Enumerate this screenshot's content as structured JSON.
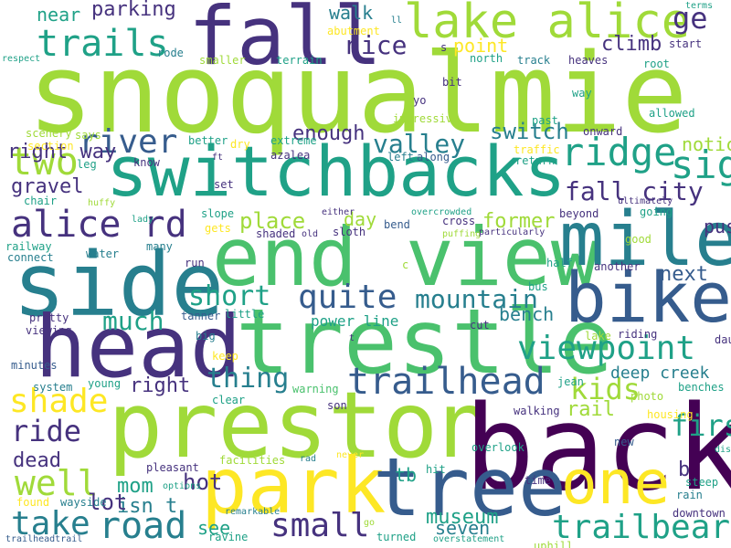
{
  "palette": {
    "purple": "#440154",
    "indigo": "#46327e",
    "blue": "#365c8d",
    "steel": "#277f8e",
    "teal": "#1fa187",
    "green": "#4ac16d",
    "lime": "#a0da39",
    "yellow": "#fde725"
  },
  "words": [
    {
      "text": "snoqualmie",
      "color": "lime"
    },
    {
      "text": "switchbacks",
      "color": "teal"
    },
    {
      "text": "preston",
      "color": "lime"
    },
    {
      "text": "back",
      "color": "purple"
    },
    {
      "text": "end view",
      "color": "green"
    },
    {
      "text": "trestle",
      "color": "green"
    },
    {
      "text": "park",
      "color": "yellow"
    },
    {
      "text": "tree",
      "color": "blue"
    },
    {
      "text": "fall",
      "color": "indigo"
    },
    {
      "text": "side",
      "color": "steel"
    },
    {
      "text": "head",
      "color": "indigo"
    },
    {
      "text": "mile",
      "color": "steel"
    },
    {
      "text": "bike",
      "color": "blue"
    },
    {
      "text": "one",
      "color": "yellow"
    },
    {
      "text": "lake alice",
      "color": "lime"
    },
    {
      "text": "trailhead",
      "color": "blue"
    },
    {
      "text": "ridge",
      "color": "teal"
    },
    {
      "text": "viewpoint",
      "color": "teal"
    },
    {
      "text": "alice rd",
      "color": "indigo"
    },
    {
      "text": "trails",
      "color": "teal"
    },
    {
      "text": "two",
      "color": "lime"
    },
    {
      "text": "river",
      "color": "blue"
    },
    {
      "text": "sign",
      "color": "teal"
    },
    {
      "text": "quite",
      "color": "blue"
    },
    {
      "text": "road",
      "color": "steel"
    },
    {
      "text": "small",
      "color": "indigo"
    },
    {
      "text": "trailbear",
      "color": "teal"
    },
    {
      "text": "take",
      "color": "steel"
    },
    {
      "text": "shade",
      "color": "yellow"
    },
    {
      "text": "well",
      "color": "lime"
    },
    {
      "text": "kids",
      "color": "lime"
    },
    {
      "text": "mountain",
      "color": "steel"
    },
    {
      "text": "fall city",
      "color": "indigo"
    },
    {
      "text": "valley",
      "color": "steel"
    },
    {
      "text": "much",
      "color": "teal"
    },
    {
      "text": "short",
      "color": "teal"
    },
    {
      "text": "thing",
      "color": "steel"
    },
    {
      "text": "ride",
      "color": "indigo"
    },
    {
      "text": "first",
      "color": "teal"
    },
    {
      "text": "nice",
      "color": "indigo"
    },
    {
      "text": "switch",
      "color": "steel"
    },
    {
      "text": "enough",
      "color": "indigo"
    },
    {
      "text": "place",
      "color": "lime"
    },
    {
      "text": "climb",
      "color": "indigo"
    },
    {
      "text": "parking",
      "color": "indigo"
    },
    {
      "text": "near",
      "color": "teal"
    },
    {
      "text": "walk",
      "color": "steel"
    },
    {
      "text": "point",
      "color": "yellow"
    },
    {
      "text": "ge",
      "color": "indigo"
    },
    {
      "text": "right way",
      "color": "indigo"
    },
    {
      "text": "gravel",
      "color": "indigo"
    },
    {
      "text": "day",
      "color": "lime"
    },
    {
      "text": "former",
      "color": "lime"
    },
    {
      "text": "next",
      "color": "blue"
    },
    {
      "text": "mom",
      "color": "teal"
    },
    {
      "text": "isn t",
      "color": "steel"
    },
    {
      "text": "see",
      "color": "teal"
    },
    {
      "text": "seven",
      "color": "steel"
    },
    {
      "text": "museum",
      "color": "teal"
    },
    {
      "text": "tb",
      "color": "teal"
    },
    {
      "text": "lot",
      "color": "indigo"
    },
    {
      "text": "hot",
      "color": "indigo"
    },
    {
      "text": "rail",
      "color": "lime"
    },
    {
      "text": "bench",
      "color": "steel"
    },
    {
      "text": "right",
      "color": "indigo"
    },
    {
      "text": "dead",
      "color": "indigo"
    },
    {
      "text": "b",
      "color": "indigo"
    },
    {
      "text": "notice",
      "color": "lime"
    },
    {
      "text": "pushing",
      "color": "indigo"
    },
    {
      "text": "deep creek",
      "color": "steel"
    },
    {
      "text": "power line",
      "color": "teal"
    },
    {
      "text": "terrain",
      "color": "teal"
    },
    {
      "text": "smaller",
      "color": "lime"
    },
    {
      "text": "abutment",
      "color": "yellow"
    },
    {
      "text": "north",
      "color": "teal"
    },
    {
      "text": "track",
      "color": "steel"
    },
    {
      "text": "heaves",
      "color": "indigo"
    },
    {
      "text": "root",
      "color": "teal"
    },
    {
      "text": "start",
      "color": "indigo"
    },
    {
      "text": "terms",
      "color": "teal"
    },
    {
      "text": "rode",
      "color": "steel"
    },
    {
      "text": "respect",
      "color": "teal"
    },
    {
      "text": "says",
      "color": "lime"
    },
    {
      "text": "scenery",
      "color": "lime"
    },
    {
      "text": "section",
      "color": "yellow"
    },
    {
      "text": "leg",
      "color": "teal"
    },
    {
      "text": "better",
      "color": "teal"
    },
    {
      "text": "dry",
      "color": "yellow"
    },
    {
      "text": "extreme",
      "color": "teal"
    },
    {
      "text": "impressive",
      "color": "lime"
    },
    {
      "text": "yo",
      "color": "indigo"
    },
    {
      "text": "bit",
      "color": "indigo"
    },
    {
      "text": "past",
      "color": "teal"
    },
    {
      "text": "way",
      "color": "teal"
    },
    {
      "text": "allowed",
      "color": "teal"
    },
    {
      "text": "onward",
      "color": "indigo"
    },
    {
      "text": "traffic",
      "color": "yellow"
    },
    {
      "text": "return",
      "color": "teal"
    },
    {
      "text": "left",
      "color": "steel"
    },
    {
      "text": "along",
      "color": "blue"
    },
    {
      "text": "azalea",
      "color": "indigo"
    },
    {
      "text": "know",
      "color": "indigo"
    },
    {
      "text": "ft",
      "color": "indigo"
    },
    {
      "text": "set",
      "color": "indigo"
    },
    {
      "text": "slope",
      "color": "teal"
    },
    {
      "text": "gets",
      "color": "yellow"
    },
    {
      "text": "shaded",
      "color": "indigo"
    },
    {
      "text": "old",
      "color": "indigo"
    },
    {
      "text": "sloth",
      "color": "indigo"
    },
    {
      "text": "either",
      "color": "indigo"
    },
    {
      "text": "overcrowded",
      "color": "teal"
    },
    {
      "text": "cross",
      "color": "indigo"
    },
    {
      "text": "bend",
      "color": "blue"
    },
    {
      "text": "puffing",
      "color": "lime"
    },
    {
      "text": "particularly",
      "color": "indigo"
    },
    {
      "text": "beyond",
      "color": "indigo"
    },
    {
      "text": "half",
      "color": "teal"
    },
    {
      "text": "going",
      "color": "teal"
    },
    {
      "text": "ultimately",
      "color": "indigo"
    },
    {
      "text": "good",
      "color": "lime"
    },
    {
      "text": "another",
      "color": "indigo"
    },
    {
      "text": "lady",
      "color": "teal"
    },
    {
      "text": "chair",
      "color": "teal"
    },
    {
      "text": "huffy",
      "color": "lime"
    },
    {
      "text": "railway",
      "color": "teal"
    },
    {
      "text": "connect",
      "color": "steel"
    },
    {
      "text": "water",
      "color": "steel"
    },
    {
      "text": "many",
      "color": "steel"
    },
    {
      "text": "run",
      "color": "indigo"
    },
    {
      "text": "c",
      "color": "lime"
    },
    {
      "text": "bus",
      "color": "teal"
    },
    {
      "text": "tanner",
      "color": "blue"
    },
    {
      "text": "little",
      "color": "teal"
    },
    {
      "text": "pretty",
      "color": "indigo"
    },
    {
      "text": "viewing",
      "color": "indigo"
    },
    {
      "text": "minutes",
      "color": "blue"
    },
    {
      "text": "big",
      "color": "steel"
    },
    {
      "text": "keep",
      "color": "yellow"
    },
    {
      "text": "t",
      "color": "indigo"
    },
    {
      "text": "cut",
      "color": "indigo"
    },
    {
      "text": "lake",
      "color": "lime"
    },
    {
      "text": "riding",
      "color": "indigo"
    },
    {
      "text": "daughter",
      "color": "indigo"
    },
    {
      "text": "jean",
      "color": "teal"
    },
    {
      "text": "photo",
      "color": "lime"
    },
    {
      "text": "benches",
      "color": "teal"
    },
    {
      "text": "system",
      "color": "steel"
    },
    {
      "text": "young",
      "color": "teal"
    },
    {
      "text": "warning",
      "color": "green"
    },
    {
      "text": "clear",
      "color": "teal"
    },
    {
      "text": "son",
      "color": "indigo"
    },
    {
      "text": "overlook",
      "color": "teal"
    },
    {
      "text": "walking",
      "color": "indigo"
    },
    {
      "text": "housing",
      "color": "yellow"
    },
    {
      "text": "disappointing",
      "color": "teal"
    },
    {
      "text": "new",
      "color": "blue"
    },
    {
      "text": "pleasant",
      "color": "indigo"
    },
    {
      "text": "facilities",
      "color": "lime"
    },
    {
      "text": "rad",
      "color": "steel"
    },
    {
      "text": "never",
      "color": "yellow"
    },
    {
      "text": "hit",
      "color": "teal"
    },
    {
      "text": "steep",
      "color": "teal"
    },
    {
      "text": "rain",
      "color": "steel"
    },
    {
      "text": "time",
      "color": "indigo"
    },
    {
      "text": "found",
      "color": "yellow"
    },
    {
      "text": "wayside",
      "color": "steel"
    },
    {
      "text": "options",
      "color": "teal"
    },
    {
      "text": "remarkable",
      "color": "steel"
    },
    {
      "text": "go",
      "color": "lime"
    },
    {
      "text": "uphill",
      "color": "lime"
    },
    {
      "text": "downtown",
      "color": "indigo"
    },
    {
      "text": "ravine",
      "color": "teal"
    },
    {
      "text": "turned",
      "color": "teal"
    },
    {
      "text": "trailheadtrail",
      "color": "blue"
    },
    {
      "text": "overstatement",
      "color": "teal"
    },
    {
      "text": "s",
      "color": "indigo"
    },
    {
      "text": "ll",
      "color": "steel"
    }
  ]
}
